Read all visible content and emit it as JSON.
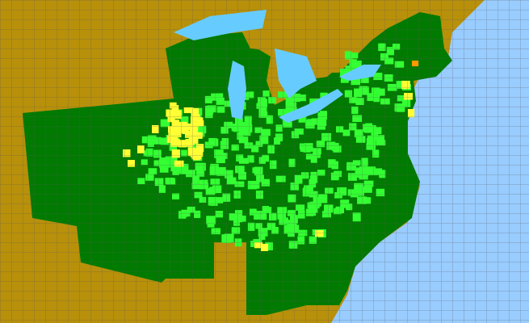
{
  "map": {
    "colors": {
      "ocean": "#99ccff",
      "lakes": "#66ccff",
      "outside_range": "#b8900a",
      "native_range": "#007a00",
      "highlight_county": "#33ff33",
      "yellow_county": "#ffff33",
      "orange_county": "#ff9900",
      "county_lines": "#5a5a5a"
    }
  }
}
